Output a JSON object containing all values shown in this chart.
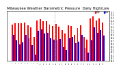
{
  "title": "Milwaukee Weather Barometric Pressure  Daily High/Low",
  "title_fontsize": 3.8,
  "background_color": "#ffffff",
  "high_color": "#ff0000",
  "low_color": "#0000ff",
  "ylim": [
    29.0,
    30.75
  ],
  "ytick_values": [
    29.0,
    29.1,
    29.2,
    29.3,
    29.4,
    29.5,
    29.6,
    29.7,
    29.8,
    29.9,
    30.0,
    30.1,
    30.2,
    30.3,
    30.4,
    30.5,
    30.6,
    30.7
  ],
  "dashed_line_after_index": 14,
  "days": [
    "1",
    "2",
    "3",
    "4",
    "5",
    "6",
    "7",
    "8",
    "9",
    "10",
    "11",
    "12",
    "13",
    "14",
    "15",
    "16",
    "17",
    "18",
    "19",
    "20",
    "21",
    "22",
    "23",
    "24",
    "25",
    "26",
    "27",
    "28",
    "29",
    "30"
  ],
  "high_values": [
    30.28,
    30.32,
    30.32,
    30.32,
    30.35,
    30.25,
    30.18,
    29.85,
    30.42,
    30.45,
    30.38,
    30.4,
    30.28,
    30.22,
    30.3,
    30.2,
    30.08,
    29.95,
    30.25,
    30.22,
    29.92,
    30.15,
    30.25,
    29.85,
    29.75,
    30.48,
    30.55,
    30.42,
    30.48,
    30.35
  ],
  "low_values": [
    29.9,
    29.72,
    29.58,
    29.65,
    29.92,
    29.8,
    29.55,
    29.22,
    30.05,
    30.1,
    29.95,
    29.98,
    29.8,
    29.75,
    29.72,
    29.78,
    29.48,
    29.38,
    29.8,
    29.85,
    29.62,
    29.68,
    29.9,
    29.45,
    29.3,
    29.72,
    30.18,
    29.98,
    30.08,
    29.88
  ]
}
